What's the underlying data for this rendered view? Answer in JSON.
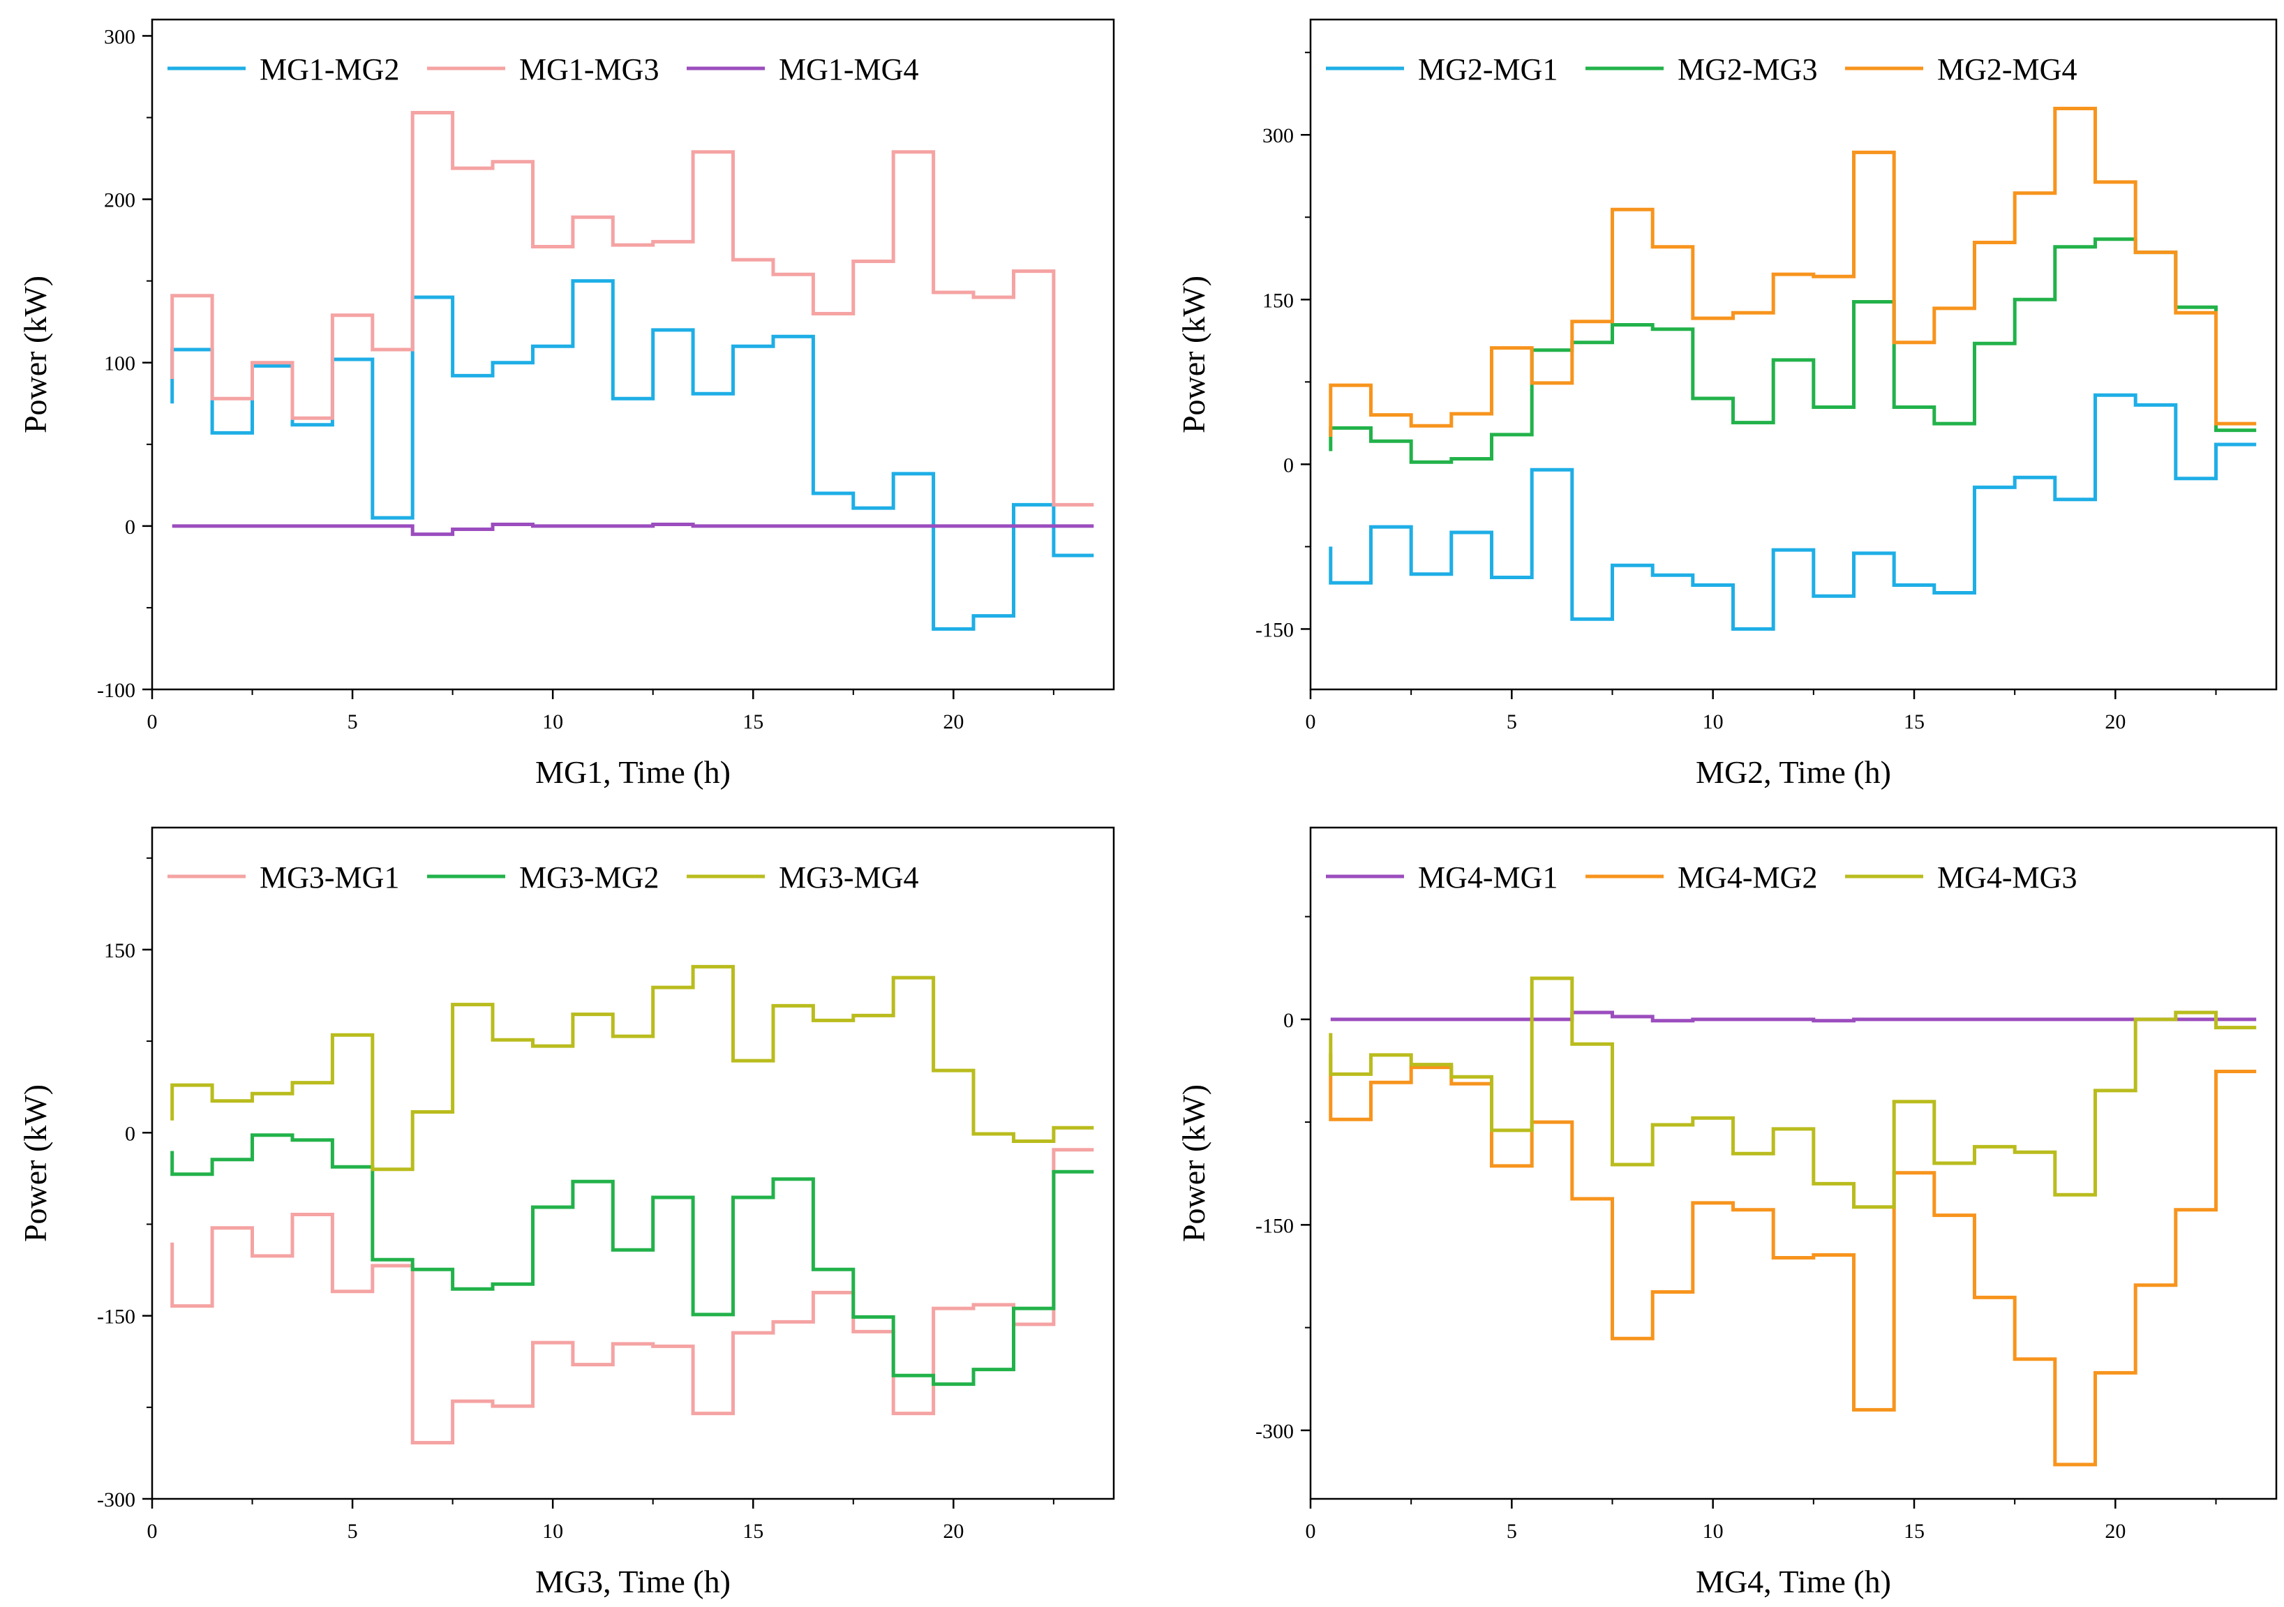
{
  "chart_data": [
    {
      "type": "line",
      "step": true,
      "title": "",
      "xlabel": "MG1, Time (h)",
      "ylabel": "Power (kW)",
      "xlim": [
        0,
        24
      ],
      "ylim": [
        -100,
        310
      ],
      "xticks": [
        0,
        5,
        10,
        15,
        20
      ],
      "xtick_labels": [
        "0",
        "5",
        "10",
        "15",
        "20"
      ],
      "yticks": [
        -100,
        0,
        100,
        200,
        300
      ],
      "ytick_labels": [
        "-100",
        "0",
        "100",
        "200",
        "300"
      ],
      "legend_position": "top",
      "x": [
        0.5,
        1.5,
        2.5,
        3.5,
        4.5,
        5.5,
        6.5,
        7.5,
        8.5,
        9.5,
        10.5,
        11.5,
        12.5,
        13.5,
        14.5,
        15.5,
        16.5,
        17.5,
        18.5,
        19.5,
        20.5,
        21.5,
        22.5,
        23.5
      ],
      "series": [
        {
          "name": "MG1-MG2",
          "color": "#1eaee6",
          "start_value": 75,
          "values": [
            108,
            57,
            98,
            62,
            102,
            5,
            140,
            92,
            100,
            110,
            150,
            78,
            120,
            81,
            110,
            116,
            20,
            11,
            32,
            -63,
            -55,
            13,
            -18,
            -18
          ]
        },
        {
          "name": "MG1-MG3",
          "color": "#f5a3a3",
          "start_value": 90,
          "values": [
            141,
            78,
            100,
            66,
            129,
            108,
            253,
            219,
            223,
            171,
            189,
            172,
            174,
            229,
            163,
            154,
            130,
            162,
            229,
            143,
            140,
            156,
            13,
            13
          ]
        },
        {
          "name": "MG1-MG4",
          "color": "#9b4dbe",
          "start_value": 0,
          "values": [
            0,
            0,
            0,
            0,
            0,
            0,
            -5,
            -2,
            1,
            0,
            0,
            0,
            1,
            0,
            0,
            0,
            0,
            0,
            0,
            0,
            0,
            0,
            0,
            0
          ]
        }
      ]
    },
    {
      "type": "line",
      "step": true,
      "title": "",
      "xlabel": "MG2, Time (h)",
      "ylabel": "Power (kW)",
      "xlim": [
        0,
        24
      ],
      "ylim": [
        -205,
        405
      ],
      "xticks": [
        0,
        5,
        10,
        15,
        20
      ],
      "xtick_labels": [
        "0",
        "5",
        "10",
        "15",
        "20"
      ],
      "yticks": [
        -150,
        0,
        150,
        300
      ],
      "ytick_labels": [
        "-150",
        "0",
        "150",
        "300"
      ],
      "legend_position": "top",
      "x": [
        0.5,
        1.5,
        2.5,
        3.5,
        4.5,
        5.5,
        6.5,
        7.5,
        8.5,
        9.5,
        10.5,
        11.5,
        12.5,
        13.5,
        14.5,
        15.5,
        16.5,
        17.5,
        18.5,
        19.5,
        20.5,
        21.5,
        22.5,
        23.5
      ],
      "series": [
        {
          "name": "MG2-MG1",
          "color": "#1eaee6",
          "start_value": -75,
          "values": [
            -108,
            -57,
            -100,
            -62,
            -103,
            -5,
            -141,
            -92,
            -101,
            -110,
            -150,
            -78,
            -120,
            -81,
            -110,
            -117,
            -21,
            -12,
            -32,
            63,
            54,
            -13,
            18,
            18
          ]
        },
        {
          "name": "MG2-MG3",
          "color": "#22b24a",
          "start_value": 12,
          "values": [
            33,
            21,
            2,
            5,
            27,
            104,
            111,
            127,
            123,
            60,
            38,
            95,
            52,
            148,
            52,
            37,
            110,
            150,
            198,
            205,
            193,
            143,
            31,
            31
          ]
        },
        {
          "name": "MG2-MG4",
          "color": "#f7941d",
          "start_value": 25,
          "values": [
            72,
            45,
            35,
            46,
            106,
            74,
            130,
            232,
            198,
            133,
            138,
            173,
            171,
            284,
            111,
            142,
            202,
            247,
            324,
            257,
            193,
            138,
            37,
            37
          ]
        }
      ]
    },
    {
      "type": "line",
      "step": true,
      "title": "",
      "xlabel": "MG3, Time (h)",
      "ylabel": "Power (kW)",
      "xlim": [
        0,
        24
      ],
      "ylim": [
        -300,
        250
      ],
      "xticks": [
        0,
        5,
        10,
        15,
        20
      ],
      "xtick_labels": [
        "0",
        "5",
        "10",
        "15",
        "20"
      ],
      "yticks": [
        -300,
        -150,
        0,
        150
      ],
      "ytick_labels": [
        "-300",
        "-150",
        "0",
        "150"
      ],
      "legend_position": "top",
      "x": [
        0.5,
        1.5,
        2.5,
        3.5,
        4.5,
        5.5,
        6.5,
        7.5,
        8.5,
        9.5,
        10.5,
        11.5,
        12.5,
        13.5,
        14.5,
        15.5,
        16.5,
        17.5,
        18.5,
        19.5,
        20.5,
        21.5,
        22.5,
        23.5
      ],
      "series": [
        {
          "name": "MG3-MG1",
          "color": "#f5a3a3",
          "start_value": -90,
          "values": [
            -142,
            -78,
            -101,
            -67,
            -130,
            -109,
            -254,
            -220,
            -224,
            -172,
            -190,
            -173,
            -175,
            -230,
            -164,
            -155,
            -131,
            -163,
            -230,
            -144,
            -141,
            -157,
            -14,
            -14
          ]
        },
        {
          "name": "MG3-MG2",
          "color": "#22b24a",
          "start_value": -15,
          "values": [
            -34,
            -22,
            -2,
            -6,
            -28,
            -104,
            -112,
            -128,
            -124,
            -61,
            -40,
            -96,
            -53,
            -149,
            -53,
            -38,
            -112,
            -151,
            -199,
            -206,
            -194,
            -144,
            -32,
            -32
          ]
        },
        {
          "name": "MG3-MG4",
          "color": "#b9bc1d",
          "start_value": 10,
          "values": [
            39,
            26,
            32,
            41,
            80,
            -30,
            17,
            105,
            76,
            71,
            97,
            79,
            119,
            136,
            59,
            104,
            92,
            96,
            127,
            51,
            -1,
            -7,
            4,
            4
          ]
        }
      ]
    },
    {
      "type": "line",
      "step": true,
      "title": "",
      "xlabel": "MG4, Time (h)",
      "ylabel": "Power (kW)",
      "xlim": [
        0,
        24
      ],
      "ylim": [
        -350,
        140
      ],
      "xticks": [
        0,
        5,
        10,
        15,
        20
      ],
      "xtick_labels": [
        "0",
        "5",
        "10",
        "15",
        "20"
      ],
      "yticks": [
        -300,
        -150,
        0
      ],
      "ytick_labels": [
        "-300",
        "-150",
        "0"
      ],
      "legend_position": "top",
      "x": [
        0.5,
        1.5,
        2.5,
        3.5,
        4.5,
        5.5,
        6.5,
        7.5,
        8.5,
        9.5,
        10.5,
        11.5,
        12.5,
        13.5,
        14.5,
        15.5,
        16.5,
        17.5,
        18.5,
        19.5,
        20.5,
        21.5,
        22.5,
        23.5
      ],
      "series": [
        {
          "name": "MG4-MG1",
          "color": "#9b4dbe",
          "start_value": 0,
          "values": [
            0,
            0,
            0,
            0,
            0,
            0,
            5,
            2,
            -1,
            0,
            0,
            0,
            -1,
            0,
            0,
            0,
            0,
            0,
            0,
            0,
            0,
            0,
            0,
            0
          ]
        },
        {
          "name": "MG4-MG2",
          "color": "#f7941d",
          "start_value": -25,
          "values": [
            -73,
            -46,
            -35,
            -47,
            -107,
            -75,
            -131,
            -233,
            -199,
            -134,
            -139,
            -174,
            -172,
            -285,
            -112,
            -143,
            -203,
            -248,
            -325,
            -258,
            -194,
            -139,
            -38,
            -38
          ]
        },
        {
          "name": "MG4-MG3",
          "color": "#b9bc1d",
          "start_value": -10,
          "values": [
            -40,
            -26,
            -33,
            -42,
            -81,
            30,
            -18,
            -106,
            -77,
            -72,
            -98,
            -80,
            -120,
            -137,
            -60,
            -105,
            -93,
            -97,
            -128,
            -52,
            0,
            5,
            -6,
            -6
          ]
        }
      ]
    }
  ]
}
